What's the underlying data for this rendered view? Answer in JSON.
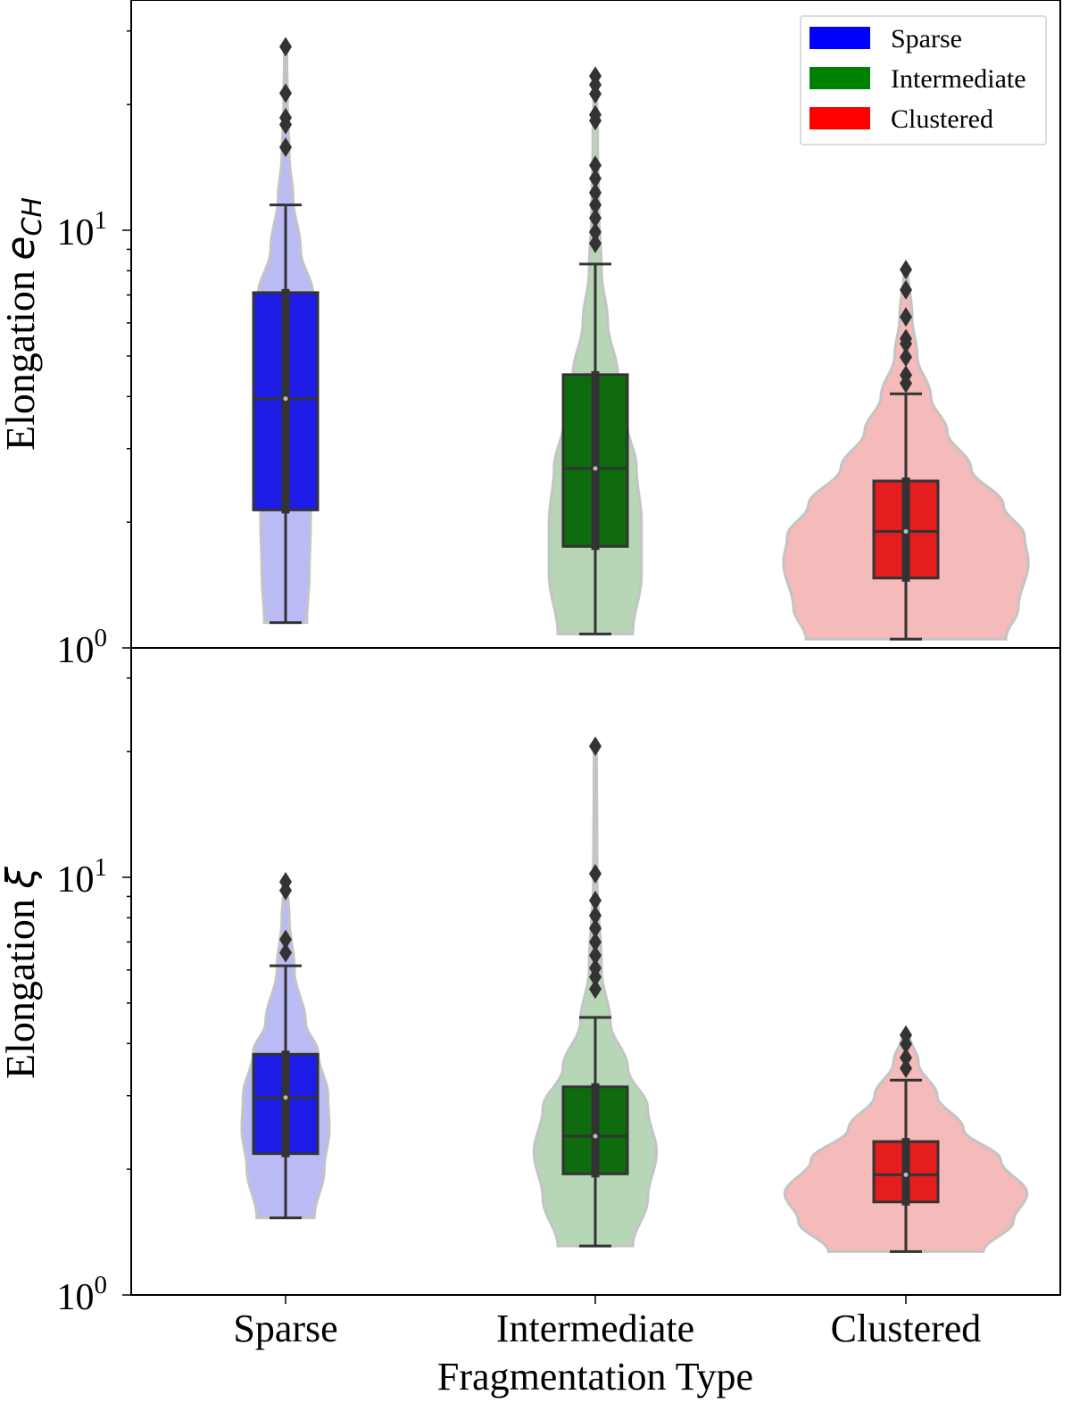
{
  "chart_data": [
    {
      "type": "violin",
      "panel": "top",
      "ylabel": "Elongation",
      "ylabel_symbol": "e",
      "ylabel_subscript": "CH",
      "yscale": "log",
      "ylim": [
        1,
        35.6
      ],
      "yticks": [
        {
          "base": "10",
          "exp": "0",
          "value": 1
        },
        {
          "base": "10",
          "exp": "1",
          "value": 10
        }
      ],
      "categories": [
        "Sparse",
        "Intermediate",
        "Clustered"
      ],
      "series": [
        {
          "name": "Sparse",
          "whisker_low": 1.15,
          "q1": 2.14,
          "median": 3.95,
          "q3": 7.09,
          "whisker_high": 11.5,
          "outliers": [
            27.5,
            21.3,
            18.6,
            17.9,
            15.8
          ],
          "density": [
            [
              1.15,
              0.17
            ],
            [
              1.5,
              0.19
            ],
            [
              2,
              0.2
            ],
            [
              3,
              0.23
            ],
            [
              5,
              0.25
            ],
            [
              7,
              0.22
            ],
            [
              9,
              0.12
            ],
            [
              12,
              0.06
            ],
            [
              15,
              0.03
            ],
            [
              20,
              0.015
            ],
            [
              27.5,
              0.01
            ]
          ]
        },
        {
          "name": "Intermediate",
          "whisker_low": 1.08,
          "q1": 1.75,
          "median": 2.69,
          "q3": 4.51,
          "whisker_high": 8.3,
          "outliers": [
            23.4,
            22.3,
            21.2,
            18.9,
            18.3,
            14.3,
            13.3,
            12.3,
            11.5,
            10.7,
            9.9,
            9.3
          ],
          "density": [
            [
              1.08,
              0.3
            ],
            [
              1.5,
              0.37
            ],
            [
              2,
              0.37
            ],
            [
              2.7,
              0.33
            ],
            [
              3.5,
              0.25
            ],
            [
              4.5,
              0.18
            ],
            [
              6,
              0.1
            ],
            [
              8,
              0.05
            ],
            [
              11,
              0.03
            ],
            [
              16,
              0.02
            ],
            [
              23.4,
              0.01
            ]
          ]
        },
        {
          "name": "Clustered",
          "whisker_low": 1.05,
          "q1": 1.47,
          "median": 1.9,
          "q3": 2.51,
          "whisker_high": 4.06,
          "outliers": [
            8.05,
            7.2,
            6.2,
            5.5,
            5.35,
            4.97,
            4.5,
            4.3
          ],
          "density": [
            [
              1.05,
              0.8
            ],
            [
              1.25,
              0.9
            ],
            [
              1.6,
              0.98
            ],
            [
              1.85,
              0.95
            ],
            [
              2.2,
              0.78
            ],
            [
              2.7,
              0.52
            ],
            [
              3.3,
              0.33
            ],
            [
              4,
              0.2
            ],
            [
              5,
              0.09
            ],
            [
              6.2,
              0.05
            ],
            [
              8.05,
              0.015
            ]
          ]
        }
      ],
      "legend": {
        "placement": "top-right",
        "entries": [
          "Sparse",
          "Intermediate",
          "Clustered"
        ]
      }
    },
    {
      "type": "violin",
      "panel": "bottom",
      "ylabel": "Elongation",
      "ylabel_symbol": "ξ",
      "yscale": "log",
      "ylim": [
        1,
        35.6
      ],
      "yticks": [
        {
          "base": "10",
          "exp": "0",
          "value": 1
        },
        {
          "base": "10",
          "exp": "1",
          "value": 10
        }
      ],
      "xlabel": "Fragmentation Type",
      "categories": [
        "Sparse",
        "Intermediate",
        "Clustered"
      ],
      "series": [
        {
          "name": "Sparse",
          "whisker_low": 1.53,
          "q1": 2.18,
          "median": 2.97,
          "q3": 3.77,
          "whisker_high": 6.14,
          "outliers": [
            9.76,
            9.3,
            7.1,
            6.6
          ],
          "density": [
            [
              1.53,
              0.23
            ],
            [
              2,
              0.31
            ],
            [
              2.5,
              0.35
            ],
            [
              3,
              0.34
            ],
            [
              3.8,
              0.26
            ],
            [
              4.5,
              0.16
            ],
            [
              6,
              0.07
            ],
            [
              8,
              0.03
            ],
            [
              9.76,
              0.01
            ]
          ]
        },
        {
          "name": "Intermediate",
          "whisker_low": 1.31,
          "q1": 1.95,
          "median": 2.4,
          "q3": 3.15,
          "whisker_high": 4.62,
          "outliers": [
            20.6,
            10.2,
            8.8,
            8.1,
            7.55,
            7.0,
            6.5,
            6.06,
            5.77,
            5.4
          ],
          "density": [
            [
              1.31,
              0.3
            ],
            [
              1.7,
              0.42
            ],
            [
              2.2,
              0.49
            ],
            [
              2.8,
              0.42
            ],
            [
              3.5,
              0.26
            ],
            [
              4.5,
              0.12
            ],
            [
              6,
              0.05
            ],
            [
              10,
              0.015
            ],
            [
              20.6,
              0.01
            ]
          ]
        },
        {
          "name": "Clustered",
          "whisker_low": 1.27,
          "q1": 1.67,
          "median": 1.94,
          "q3": 2.33,
          "whisker_high": 3.27,
          "outliers": [
            4.19,
            3.99,
            3.7,
            3.49
          ],
          "density": [
            [
              1.27,
              0.62
            ],
            [
              1.5,
              0.86
            ],
            [
              1.75,
              0.97
            ],
            [
              2.1,
              0.76
            ],
            [
              2.5,
              0.46
            ],
            [
              3,
              0.25
            ],
            [
              3.6,
              0.1
            ],
            [
              4.19,
              0.03
            ]
          ]
        }
      ]
    }
  ],
  "colors": {
    "box": [
      "#1c1ce6",
      "#0e6b0e",
      "#e41e1e"
    ],
    "violin": [
      "#babaf5",
      "#b6d6b6",
      "#f5baba"
    ],
    "legend": [
      "#0000ff",
      "#008000",
      "#ff0000"
    ],
    "edge": "#333333",
    "violin_edge": "#c4c4c4"
  }
}
